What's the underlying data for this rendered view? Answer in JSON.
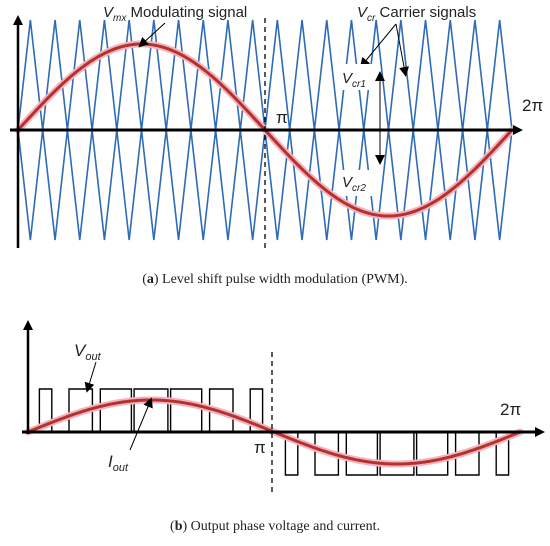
{
  "panel_a": {
    "modulating_label_sym": "V",
    "modulating_label_sub": "mx",
    "modulating_label_text": " Modulating signal",
    "carrier_label_sym": "V",
    "carrier_label_sub": "cr",
    "carrier_label_text": " Carrier signals",
    "vcr1_sym": "V",
    "vcr1_sub": "cr1",
    "vcr2_sym": "V",
    "vcr2_sub": "cr2",
    "pi_label": "π",
    "two_pi_label": "2π",
    "caption_tag": "a",
    "caption_text": " Level shift pulse width modulation (PWM).",
    "colors": {
      "modulating": "#b5322a",
      "modulating_glow": "#f2b3c2",
      "carrier": "#2f6cb7",
      "axis": "#000000"
    },
    "carrier_periods": 20
  },
  "panel_b": {
    "vout_sym": "V",
    "vout_sub": "out",
    "iout_sym": "I",
    "iout_sub": "out",
    "pi_label": "π",
    "two_pi_label": "2π",
    "caption_tag": "b",
    "caption_text": " Output phase voltage and current.",
    "colors": {
      "current": "#b5322a",
      "current_glow": "#f2b3c2",
      "voltage": "#000000",
      "axis": "#000000"
    }
  }
}
